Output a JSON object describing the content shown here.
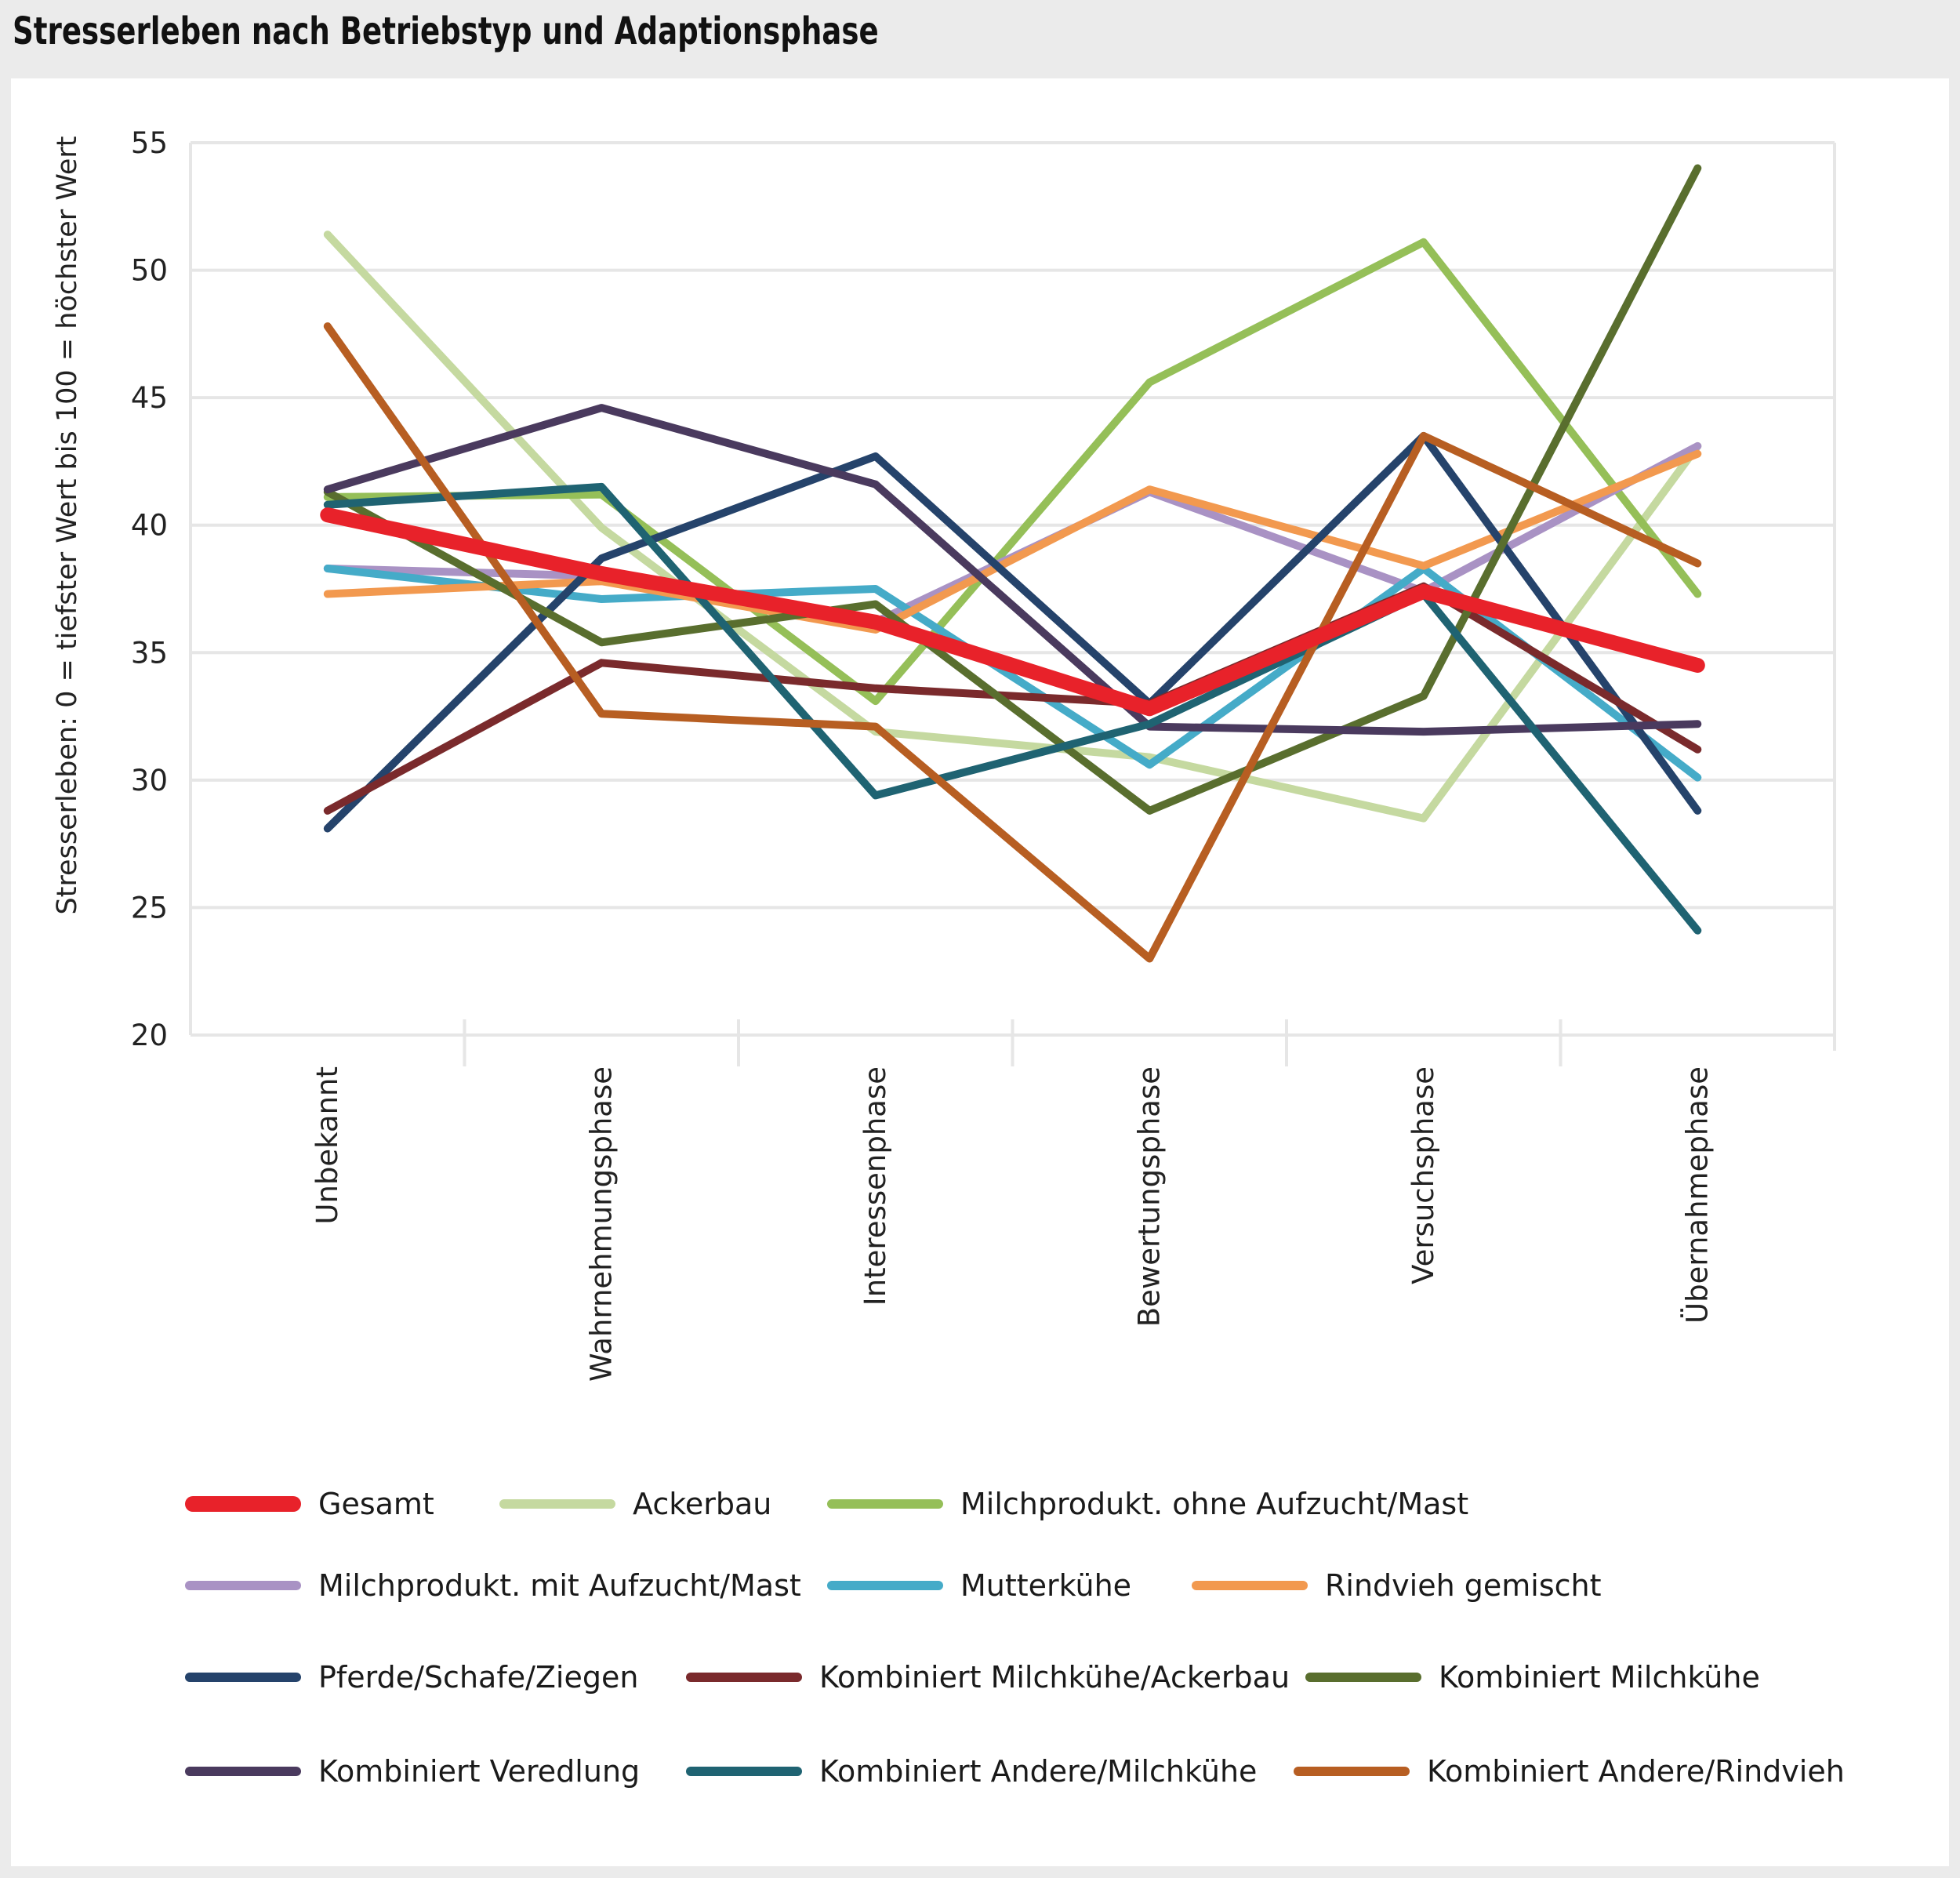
{
  "chart_data": {
    "type": "line",
    "title": "Stresserleben nach Betriebstyp und Adaptionsphase",
    "xlabel": "",
    "ylabel": "Stresserleben: 0 = tiefster Wert bis 100 = höchster Wert",
    "ylim": [
      20,
      55
    ],
    "yticks": [
      "20",
      "25",
      "30",
      "35",
      "40",
      "45",
      "50",
      "55"
    ],
    "categories": [
      "Unbekannt",
      "Wahrnehmungsphase",
      "Interessenphase",
      "Bewertungsphase",
      "Versuchsphase",
      "Übernahmephase"
    ],
    "grid": true,
    "legend_position": "bottom",
    "series": [
      {
        "name": "Ackerbau",
        "color": "#c5d9a0",
        "values": [
          51.4,
          39.9,
          31.9,
          30.9,
          28.5,
          43.1
        ]
      },
      {
        "name": "Milchprodukt. ohne Aufzucht/Mast",
        "color": "#95bf58",
        "values": [
          41.1,
          41.2,
          33.1,
          45.6,
          51.1,
          37.3
        ]
      },
      {
        "name": "Milchprodukt. mit Aufzucht/Mast",
        "color": "#a992c4",
        "values": [
          38.3,
          38.0,
          36.2,
          41.3,
          37.4,
          43.1
        ]
      },
      {
        "name": "Mutterkühe",
        "color": "#45abc8",
        "values": [
          38.3,
          37.1,
          37.5,
          30.6,
          38.3,
          30.1
        ]
      },
      {
        "name": "Rindvieh gemischt",
        "color": "#f2994f",
        "values": [
          37.3,
          37.8,
          35.9,
          41.4,
          38.4,
          42.8
        ]
      },
      {
        "name": "Pferde/Schafe/Ziegen",
        "color": "#25436b",
        "values": [
          28.1,
          38.7,
          42.7,
          33.0,
          43.5,
          28.8
        ]
      },
      {
        "name": "Kombiniert Milchkühe/Ackerbau",
        "color": "#7a2a2c",
        "values": [
          28.8,
          34.6,
          33.6,
          33.0,
          37.6,
          31.2
        ]
      },
      {
        "name": "Kombiniert Milchkühe",
        "color": "#596e2e",
        "values": [
          41.3,
          35.4,
          36.9,
          28.8,
          33.3,
          54.0
        ]
      },
      {
        "name": "Kombiniert Veredlung",
        "color": "#4a3a5e",
        "values": [
          41.4,
          44.6,
          41.6,
          32.1,
          31.9,
          32.2
        ]
      },
      {
        "name": "Kombiniert Andere/Milchkühe",
        "color": "#1f6372",
        "values": [
          40.8,
          41.5,
          29.4,
          32.2,
          37.3,
          24.1
        ]
      },
      {
        "name": "Kombiniert Andere/Rindvieh",
        "color": "#b75e22",
        "values": [
          47.8,
          32.6,
          32.1,
          23.0,
          43.5,
          38.5
        ]
      },
      {
        "name": "Gesamt",
        "color": "#e8222a",
        "values": [
          40.4,
          38.1,
          36.2,
          32.8,
          37.4,
          34.5
        ]
      }
    ]
  },
  "legend": [
    [
      "Gesamt",
      "Ackerbau",
      "Milchprodukt. ohne Aufzucht/Mast"
    ],
    [
      "Milchprodukt. mit Aufzucht/Mast",
      "Mutterkühe",
      "Rindvieh gemischt"
    ],
    [
      "Pferde/Schafe/Ziegen",
      "Kombiniert Milchkühe/Ackerbau",
      "Kombiniert Milchkühe"
    ],
    [
      "Kombiniert Veredlung",
      "Kombiniert Andere/Milchkühe",
      "Kombiniert Andere/Rindvieh"
    ]
  ]
}
